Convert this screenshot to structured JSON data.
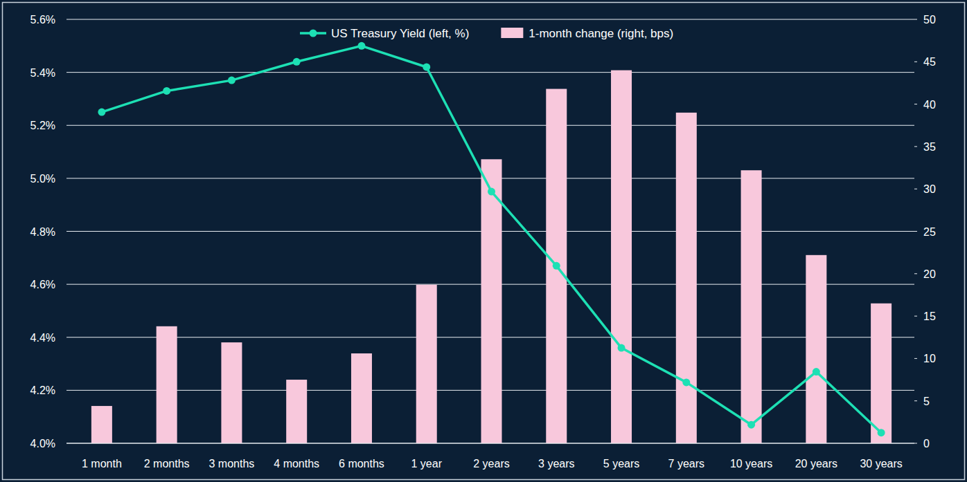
{
  "chart_data": {
    "type": "bar",
    "categories": [
      "1 month",
      "2 months",
      "3 months",
      "4 months",
      "6 months",
      "1 year",
      "2 years",
      "3 years",
      "5 years",
      "7 years",
      "10 years",
      "20 years",
      "30 years"
    ],
    "series": [
      {
        "name": "US Treasury Yield (left, %)",
        "type": "line",
        "marker": "circle",
        "color": "#1de0b4",
        "values": [
          5.25,
          5.33,
          5.37,
          5.44,
          5.5,
          5.42,
          4.95,
          4.67,
          4.36,
          4.23,
          4.07,
          4.27,
          4.04
        ]
      },
      {
        "name": "1-month change (right, bps)",
        "type": "bar",
        "axis": "y2",
        "color": "#f8c8dc",
        "values": [
          4.4,
          13.8,
          11.9,
          7.5,
          10.6,
          18.7,
          33.5,
          41.8,
          44,
          39,
          32.2,
          22.2,
          16.5
        ]
      }
    ],
    "ylim": [
      4.0,
      5.6
    ],
    "yticks": [
      {
        "value": 4.0,
        "label": "4.0%"
      },
      {
        "value": 4.2,
        "label": "4.2%"
      },
      {
        "value": 4.4,
        "label": "4.4%"
      },
      {
        "value": 4.6,
        "label": "4.6%"
      },
      {
        "value": 4.8,
        "label": "4.8%"
      },
      {
        "value": 5.0,
        "label": "5.0%"
      },
      {
        "value": 5.2,
        "label": "5.2%"
      },
      {
        "value": 5.4,
        "label": "5.4%"
      },
      {
        "value": 5.6,
        "label": "5.6%"
      }
    ],
    "y2lim": [
      0,
      50
    ],
    "y2ticks": [
      0,
      5,
      10,
      15,
      20,
      25,
      30,
      35,
      40,
      45,
      50
    ],
    "grid": true,
    "legend": "top"
  }
}
